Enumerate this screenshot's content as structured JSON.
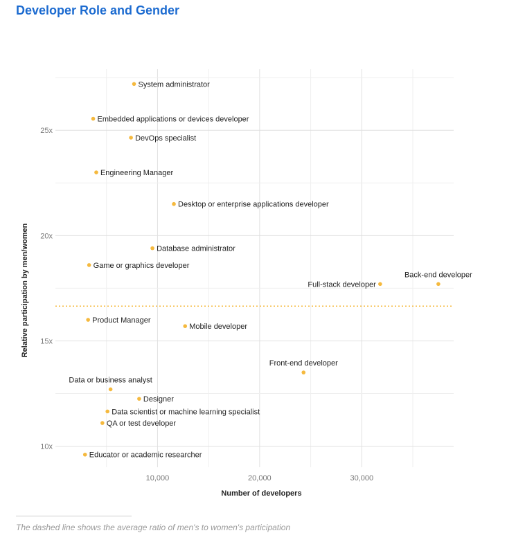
{
  "title": "Developer Role and Gender",
  "footnote": "The dashed line shows the average ratio of men's to women's participation",
  "colors": {
    "title": "#1c6bd0",
    "point": "#f5b93e",
    "average_line": "#f5b93e",
    "grid": "#e4e4e4"
  },
  "chart_data": {
    "type": "scatter",
    "xlabel": "Number of developers",
    "ylabel": "Relative participation by men/women",
    "xlim": [
      0,
      39000
    ],
    "ylim": [
      9,
      27.9
    ],
    "x_ticks": [
      {
        "value": 10000,
        "label": "10,000"
      },
      {
        "value": 20000,
        "label": "20,000"
      },
      {
        "value": 30000,
        "label": "30,000"
      }
    ],
    "y_ticks": [
      {
        "value": 10,
        "label": "10x"
      },
      {
        "value": 15,
        "label": "15x"
      },
      {
        "value": 20,
        "label": "20x"
      },
      {
        "value": 25,
        "label": "25x"
      }
    ],
    "grid": true,
    "average_line": {
      "value": 16.65,
      "style": "dotted"
    },
    "points": [
      {
        "label": "System administrator",
        "x": 7700,
        "y": 27.2
      },
      {
        "label": "Embedded applications or devices developer",
        "x": 3700,
        "y": 25.55
      },
      {
        "label": "DevOps specialist",
        "x": 7400,
        "y": 24.65
      },
      {
        "label": "Engineering Manager",
        "x": 4000,
        "y": 23.0
      },
      {
        "label": "Desktop or enterprise applications developer",
        "x": 11600,
        "y": 21.5
      },
      {
        "label": "Database administrator",
        "x": 9500,
        "y": 19.4
      },
      {
        "label": "Game or graphics developer",
        "x": 3300,
        "y": 18.6
      },
      {
        "label": "Full-stack developer",
        "x": 31800,
        "y": 17.7
      },
      {
        "label": "Back-end developer",
        "x": 37500,
        "y": 17.7
      },
      {
        "label": "Product Manager",
        "x": 3200,
        "y": 16.0
      },
      {
        "label": "Mobile developer",
        "x": 12700,
        "y": 15.7
      },
      {
        "label": "Front-end developer",
        "x": 24300,
        "y": 13.5
      },
      {
        "label": "Data or business analyst",
        "x": 5400,
        "y": 12.7
      },
      {
        "label": "Designer",
        "x": 8200,
        "y": 12.25
      },
      {
        "label": "Data scientist or machine learning specialist",
        "x": 5100,
        "y": 11.65
      },
      {
        "label": "QA or test developer",
        "x": 4600,
        "y": 11.1
      },
      {
        "label": "Educator or academic researcher",
        "x": 2900,
        "y": 9.6
      }
    ]
  }
}
